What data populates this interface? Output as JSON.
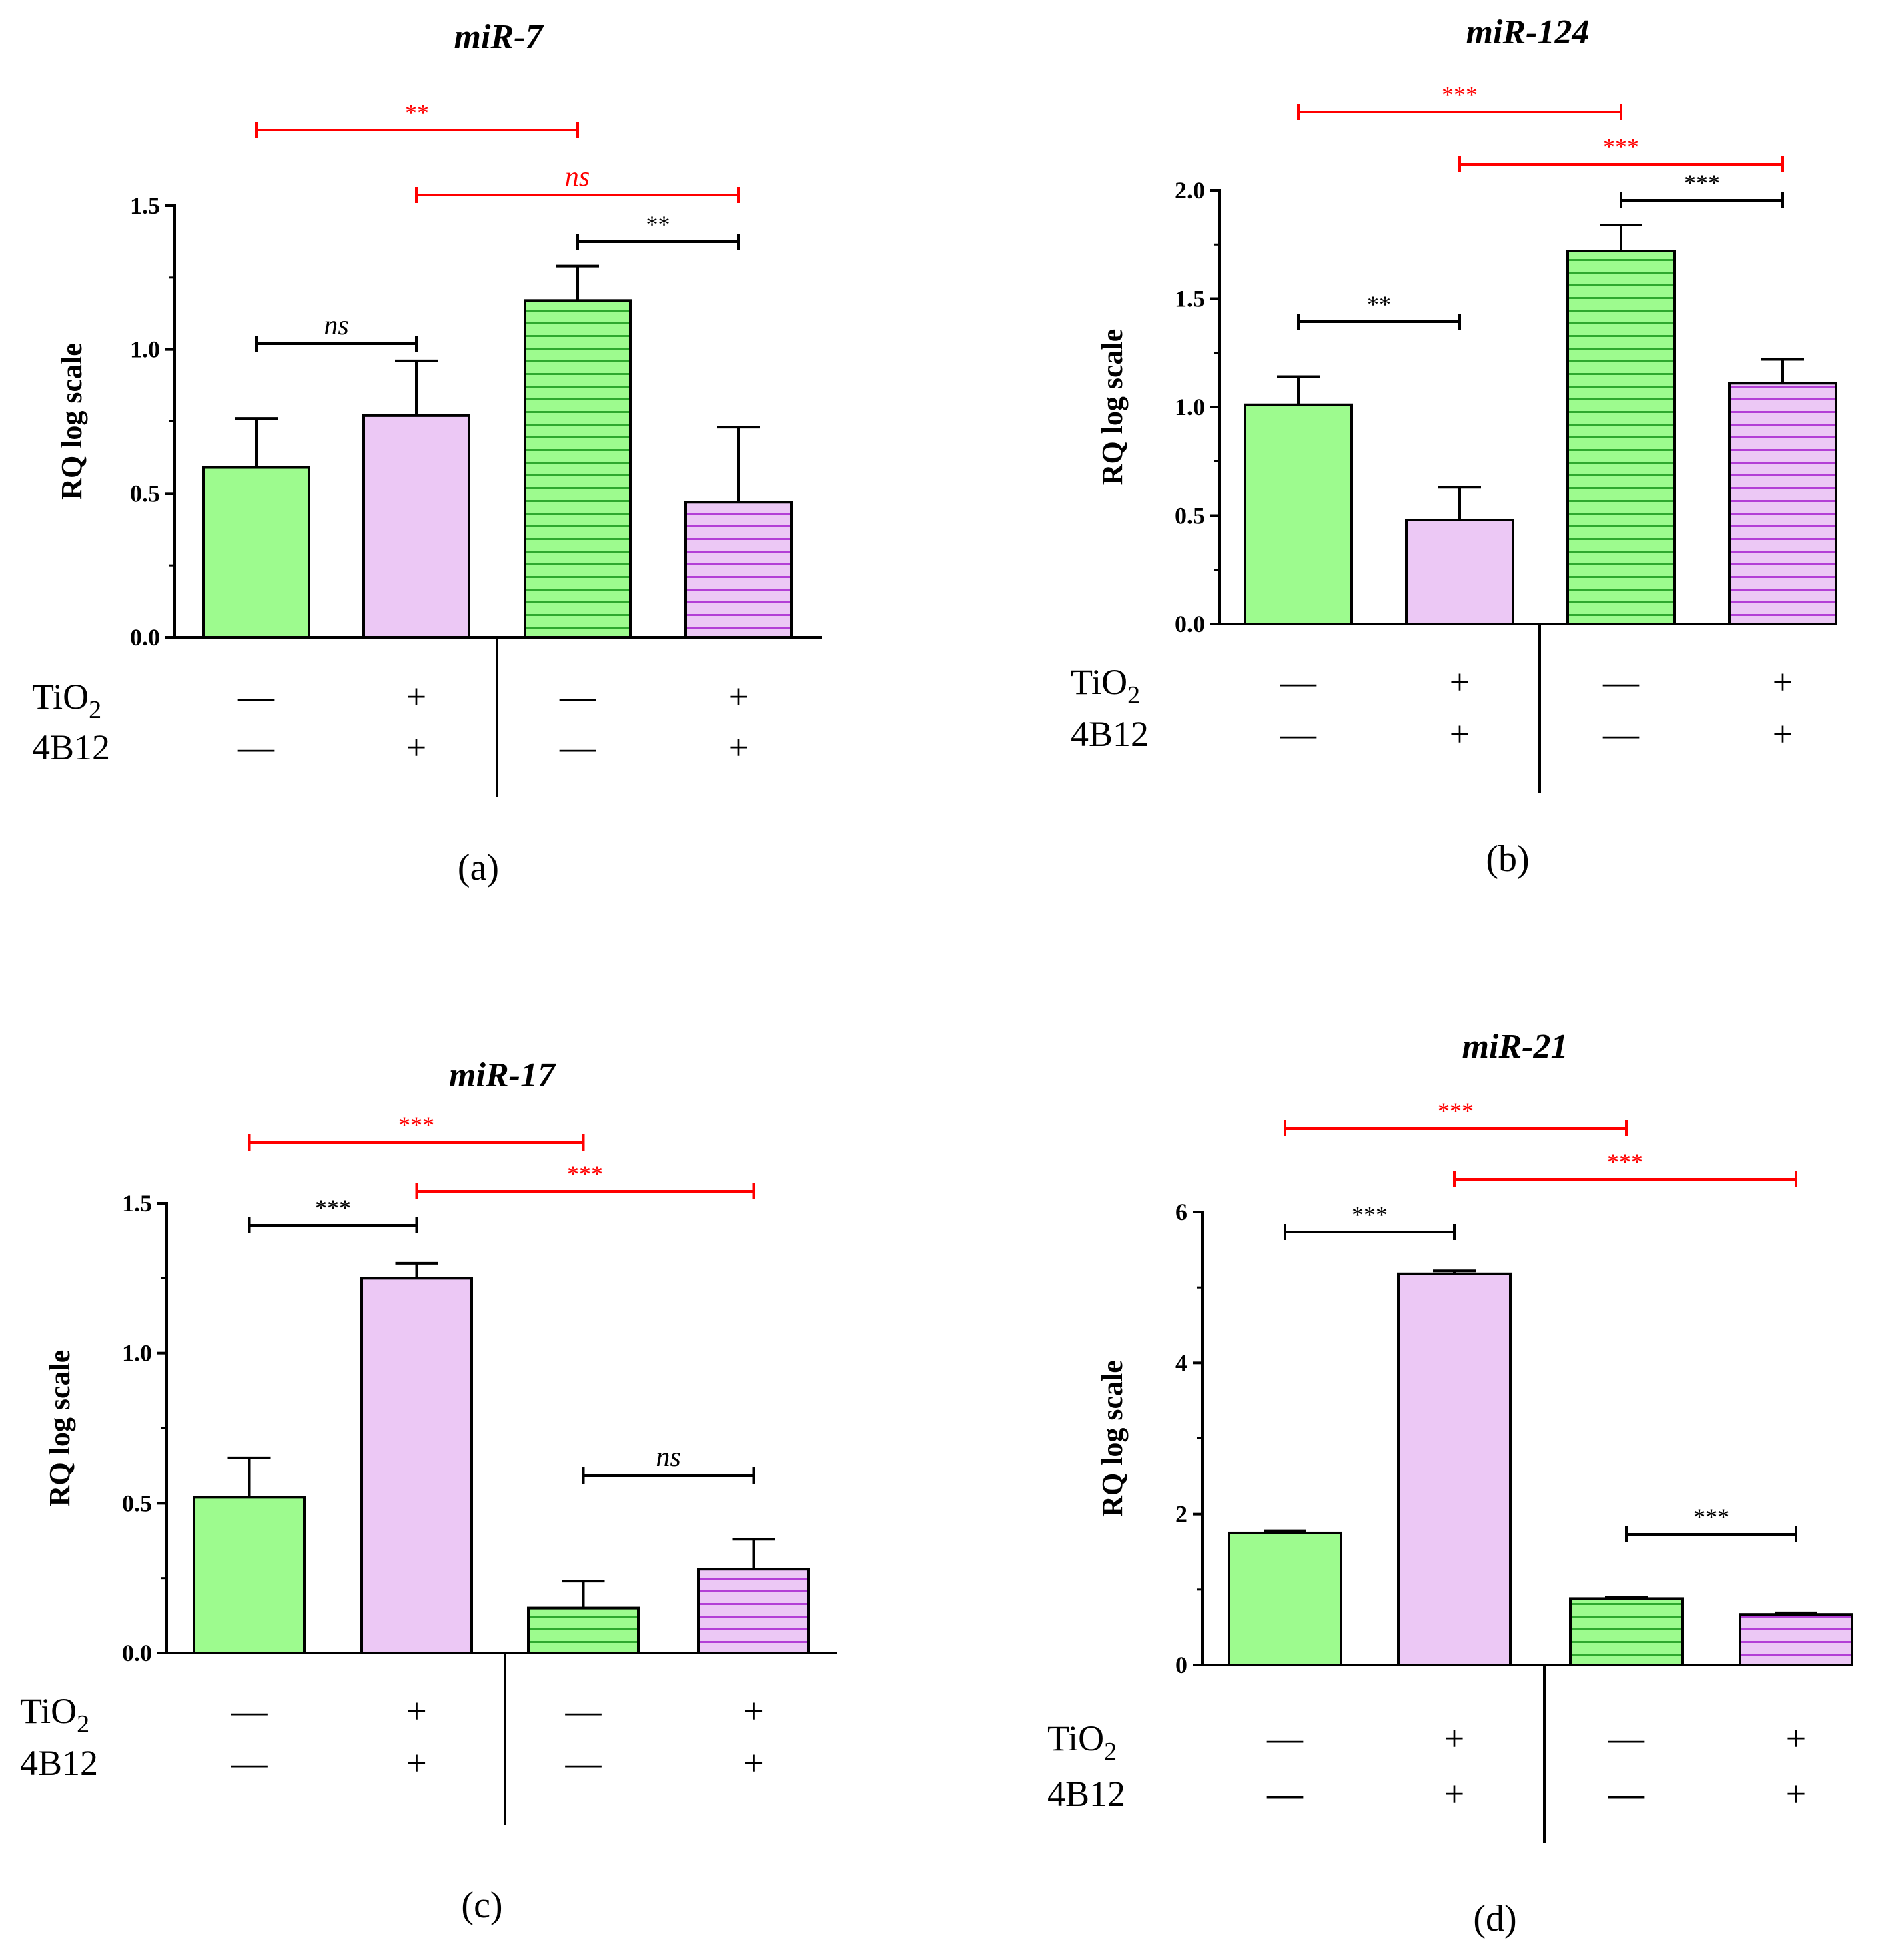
{
  "chart_data": [
    {
      "type": "bar",
      "title": "miR-7",
      "panel_label": "(a)",
      "ylabel": "RQ log scale",
      "ylim": [
        0,
        1.5
      ],
      "yticks": [
        "0.0",
        "0.5",
        "1.0",
        "1.5"
      ],
      "categories": [
        "TiO2 − / 4B12 −",
        "TiO2 + / 4B12 +",
        "TiO2 − / 4B12 −",
        "TiO2 + / 4B12 +"
      ],
      "values": [
        0.59,
        0.77,
        1.17,
        0.47
      ],
      "errors": [
        0.17,
        0.19,
        0.12,
        0.26
      ],
      "comparisons": [
        {
          "from": 0,
          "to": 1,
          "label": "ns",
          "color": "#000000"
        },
        {
          "from": 2,
          "to": 3,
          "label": "**",
          "color": "#000000"
        },
        {
          "from": 1,
          "to": 3,
          "label": "ns",
          "color": "#ff0000"
        },
        {
          "from": 0,
          "to": 2,
          "label": "**",
          "color": "#ff0000"
        }
      ]
    },
    {
      "type": "bar",
      "title": "miR-124",
      "panel_label": "(b)",
      "ylabel": "RQ log scale",
      "ylim": [
        0,
        2.0
      ],
      "yticks": [
        "0.0",
        "0.5",
        "1.0",
        "1.5",
        "2.0"
      ],
      "categories": [
        "TiO2 − / 4B12 −",
        "TiO2 + / 4B12 +",
        "TiO2 − / 4B12 −",
        "TiO2 + / 4B12 +"
      ],
      "values": [
        1.01,
        0.48,
        1.72,
        1.11
      ],
      "errors": [
        0.13,
        0.15,
        0.12,
        0.11
      ],
      "comparisons": [
        {
          "from": 0,
          "to": 1,
          "label": "**",
          "color": "#000000"
        },
        {
          "from": 2,
          "to": 3,
          "label": "***",
          "color": "#000000"
        },
        {
          "from": 1,
          "to": 3,
          "label": "***",
          "color": "#ff0000"
        },
        {
          "from": 0,
          "to": 2,
          "label": "***",
          "color": "#ff0000"
        }
      ]
    },
    {
      "type": "bar",
      "title": "miR-17",
      "panel_label": "(c)",
      "ylabel": "RQ log scale",
      "ylim": [
        0,
        1.5
      ],
      "yticks": [
        "0.0",
        "0.5",
        "1.0",
        "1.5"
      ],
      "categories": [
        "TiO2 − / 4B12 −",
        "TiO2 + / 4B12 +",
        "TiO2 − / 4B12 −",
        "TiO2 + / 4B12 +"
      ],
      "values": [
        0.52,
        1.25,
        0.15,
        0.28
      ],
      "errors": [
        0.13,
        0.05,
        0.09,
        0.1
      ],
      "comparisons": [
        {
          "from": 0,
          "to": 1,
          "label": "***",
          "color": "#000000"
        },
        {
          "from": 2,
          "to": 3,
          "label": "ns",
          "color": "#000000"
        },
        {
          "from": 1,
          "to": 3,
          "label": "***",
          "color": "#ff0000"
        },
        {
          "from": 0,
          "to": 2,
          "label": "***",
          "color": "#ff0000"
        }
      ]
    },
    {
      "type": "bar",
      "title": "miR-21",
      "panel_label": "(d)",
      "ylabel": "RQ log scale",
      "ylim": [
        0,
        6
      ],
      "yticks": [
        "0",
        "2",
        "4",
        "6"
      ],
      "categories": [
        "TiO2 − / 4B12 −",
        "TiO2 + / 4B12 +",
        "TiO2 − / 4B12 −",
        "TiO2 + / 4B12 +"
      ],
      "values": [
        1.75,
        5.18,
        0.88,
        0.67
      ],
      "errors": [
        0.03,
        0.04,
        0.02,
        0.02
      ],
      "comparisons": [
        {
          "from": 0,
          "to": 1,
          "label": "***",
          "color": "#000000"
        },
        {
          "from": 2,
          "to": 3,
          "label": "***",
          "color": "#000000"
        },
        {
          "from": 1,
          "to": 3,
          "label": "***",
          "color": "#ff0000"
        },
        {
          "from": 0,
          "to": 2,
          "label": "***",
          "color": "#ff0000"
        }
      ]
    }
  ],
  "row_labels": {
    "tio2": "TiO",
    "tio2_sub": "2",
    "b12": "4B12"
  },
  "treatment_marks": {
    "minus": "—",
    "plus": "+"
  },
  "colors": {
    "green": "#9dfb8e",
    "green_stripe": "#2ea82e",
    "pink": "#ecc8f5",
    "pink_stripe": "#b33fd6",
    "bar_edge": "#000000",
    "significance_red": "#ff0000"
  }
}
